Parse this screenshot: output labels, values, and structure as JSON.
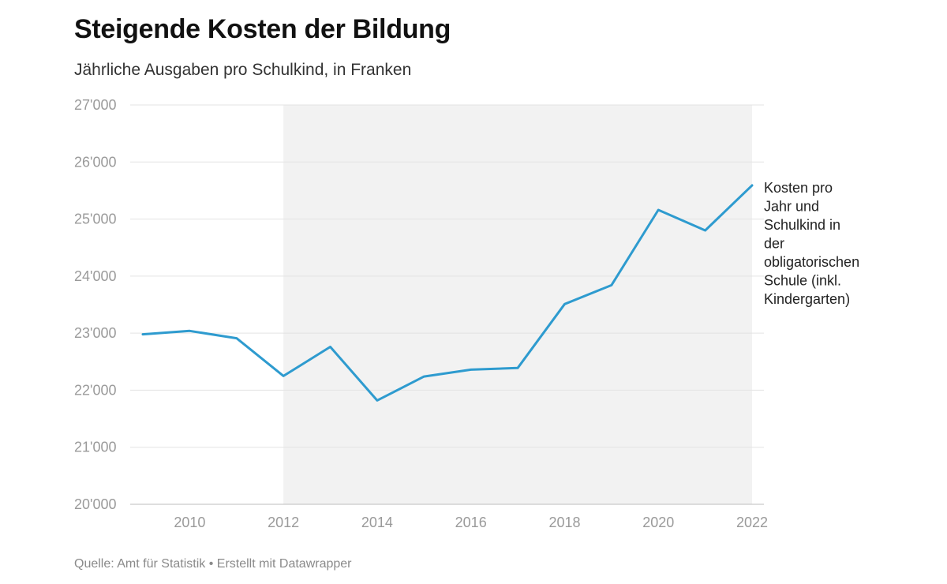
{
  "title": "Steigende Kosten der Bildung",
  "subtitle": "Jährliche Ausgaben pro Schulkind, in Franken",
  "footer": "Quelle: Amt für Statistik • Erstellt mit Datawrapper",
  "colors": {
    "line": "#2e9bcf",
    "highlight_band": "#f2f2f2",
    "grid": "#e3e3e3"
  },
  "chart_data": {
    "type": "line",
    "x": [
      2009,
      2010,
      2011,
      2012,
      2013,
      2014,
      2015,
      2016,
      2017,
      2018,
      2019,
      2020,
      2021,
      2022
    ],
    "series": [
      {
        "name": "Kosten pro Jahr und Schulkind in der obligatorischen Schule (inkl. Kindergarten)",
        "values": [
          22980,
          23040,
          22910,
          22250,
          22760,
          21820,
          22240,
          22360,
          22390,
          23510,
          23840,
          25160,
          24800,
          25590
        ]
      }
    ],
    "ylim": [
      20000,
      27000
    ],
    "y_ticks": [
      "20'000",
      "21'000",
      "22'000",
      "23'000",
      "24'000",
      "25'000",
      "26'000",
      "27'000"
    ],
    "y_tick_values": [
      20000,
      21000,
      22000,
      23000,
      24000,
      25000,
      26000,
      27000
    ],
    "x_ticks": [
      "2010",
      "2012",
      "2014",
      "2016",
      "2018",
      "2020",
      "2022"
    ],
    "x_tick_values": [
      2010,
      2012,
      2014,
      2016,
      2018,
      2020,
      2022
    ],
    "highlight_range": [
      2012,
      2022
    ],
    "series_label_lines": [
      "Kosten pro",
      "Jahr und",
      "Schulkind in",
      "der",
      "obligatorischen",
      "Schule (inkl.",
      "Kindergarten)"
    ],
    "grid": true,
    "xlabel": "",
    "ylabel": ""
  }
}
